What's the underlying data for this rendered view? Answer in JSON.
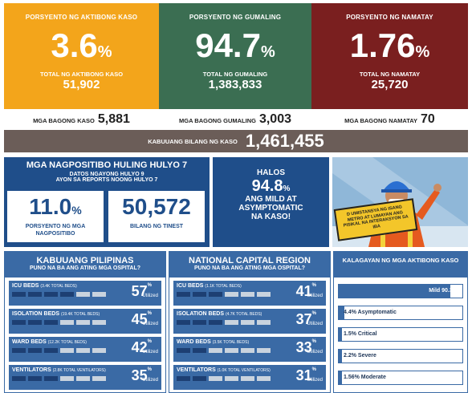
{
  "top": {
    "active": {
      "label": "PORSYENTO NG AKTIBONG KASO",
      "pct": "3.6",
      "total_label": "TOTAL NG AKTIBONG KASO",
      "total": "51,902",
      "color": "#f3a51b"
    },
    "recovered": {
      "label": "PORSYENTO NG GUMALING",
      "pct": "94.7",
      "total_label": "TOTAL NG GUMALING",
      "total": "1,383,833",
      "color": "#3b6e52"
    },
    "deaths": {
      "label": "PORSYENTO NG NAMATAY",
      "pct": "1.76",
      "total_label": "TOTAL NG NAMATAY",
      "total": "25,720",
      "color": "#7a1f1f"
    },
    "pct_sign": "%"
  },
  "new": {
    "cases_label": "MGA BAGONG KASO",
    "cases": "5,881",
    "recovered_label": "MGA BAGONG GUMALING",
    "recovered": "3,003",
    "deaths_label": "MGA BAGONG NAMATAY",
    "deaths": "70"
  },
  "total_bar": {
    "label": "KABUUANG BILANG NG KASO",
    "value": "1,461,455"
  },
  "positivity": {
    "title": "MGA NAGPOSITIBO HULING HULYO 7",
    "sub1": "DATOS NGAYONG HULYO 9",
    "sub2": "AYON SA REPORTS NOONG HULYO 7",
    "rate": "11.0",
    "rate_sign": "%",
    "rate_label": "PORSYENTO NG MGA NAGPOSITIBO",
    "tested": "50,572",
    "tested_label": "BILANG NG TINEST"
  },
  "mild": {
    "l1": "HALOS",
    "pct": "94.8",
    "sign": "%",
    "l2": "ANG MILD AT",
    "l3": "ASYMPTOMATIC",
    "l4": "NA KASO!"
  },
  "poster_text": "D UMISTANSYA NG ISANG METRO AT LUMAYAN ANG PISIKAL NA INTERAKSYON SA IBA",
  "ph": {
    "title": "KABUUANG PILIPINAS",
    "question": "PUNO NA BA ANG ATING MGA OSPITAL?",
    "rows": [
      {
        "name": "ICU BEDS",
        "detail": "(3.4K TOTAL BEDS)",
        "pct": "57",
        "filled": 4
      },
      {
        "name": "ISOLATION BEDS",
        "detail": "(19.4K TOTAL BEDS)",
        "pct": "45",
        "filled": 3
      },
      {
        "name": "WARD BEDS",
        "detail": "(12.2K TOTAL BEDS)",
        "pct": "42",
        "filled": 3
      },
      {
        "name": "VENTILATORS",
        "detail": "(2.8K TOTAL VENTILATORS)",
        "pct": "35",
        "filled": 3
      }
    ]
  },
  "ncr": {
    "title": "NATIONAL CAPITAL REGION",
    "question": "PUNO NA BA ANG ATING MGA OSPITAL?",
    "rows": [
      {
        "name": "ICU BEDS",
        "detail": "(1.1K TOTAL BEDS)",
        "pct": "41",
        "filled": 3
      },
      {
        "name": "ISOLATION BEDS",
        "detail": "(4.7K TOTAL BEDS)",
        "pct": "37",
        "filled": 3
      },
      {
        "name": "WARD BEDS",
        "detail": "(3.5K TOTAL BEDS)",
        "pct": "33",
        "filled": 2
      },
      {
        "name": "VENTILATORS",
        "detail": "(1.0K TOTAL VENTILATORS)",
        "pct": "31",
        "filled": 2
      }
    ]
  },
  "utilized_label": "Utilized",
  "pct_sign_small": "%",
  "status": {
    "title": "KALAGAYAN NG MGA AKTIBONG KASO",
    "items": [
      {
        "label": "Mild 90.3%",
        "value": 90.3
      },
      {
        "label": "4.4% Asymptomatic",
        "value": 4.4
      },
      {
        "label": "1.5% Critical",
        "value": 1.5
      },
      {
        "label": "2.2% Severe",
        "value": 2.2
      },
      {
        "label": "1.56% Moderate",
        "value": 1.56
      }
    ]
  }
}
